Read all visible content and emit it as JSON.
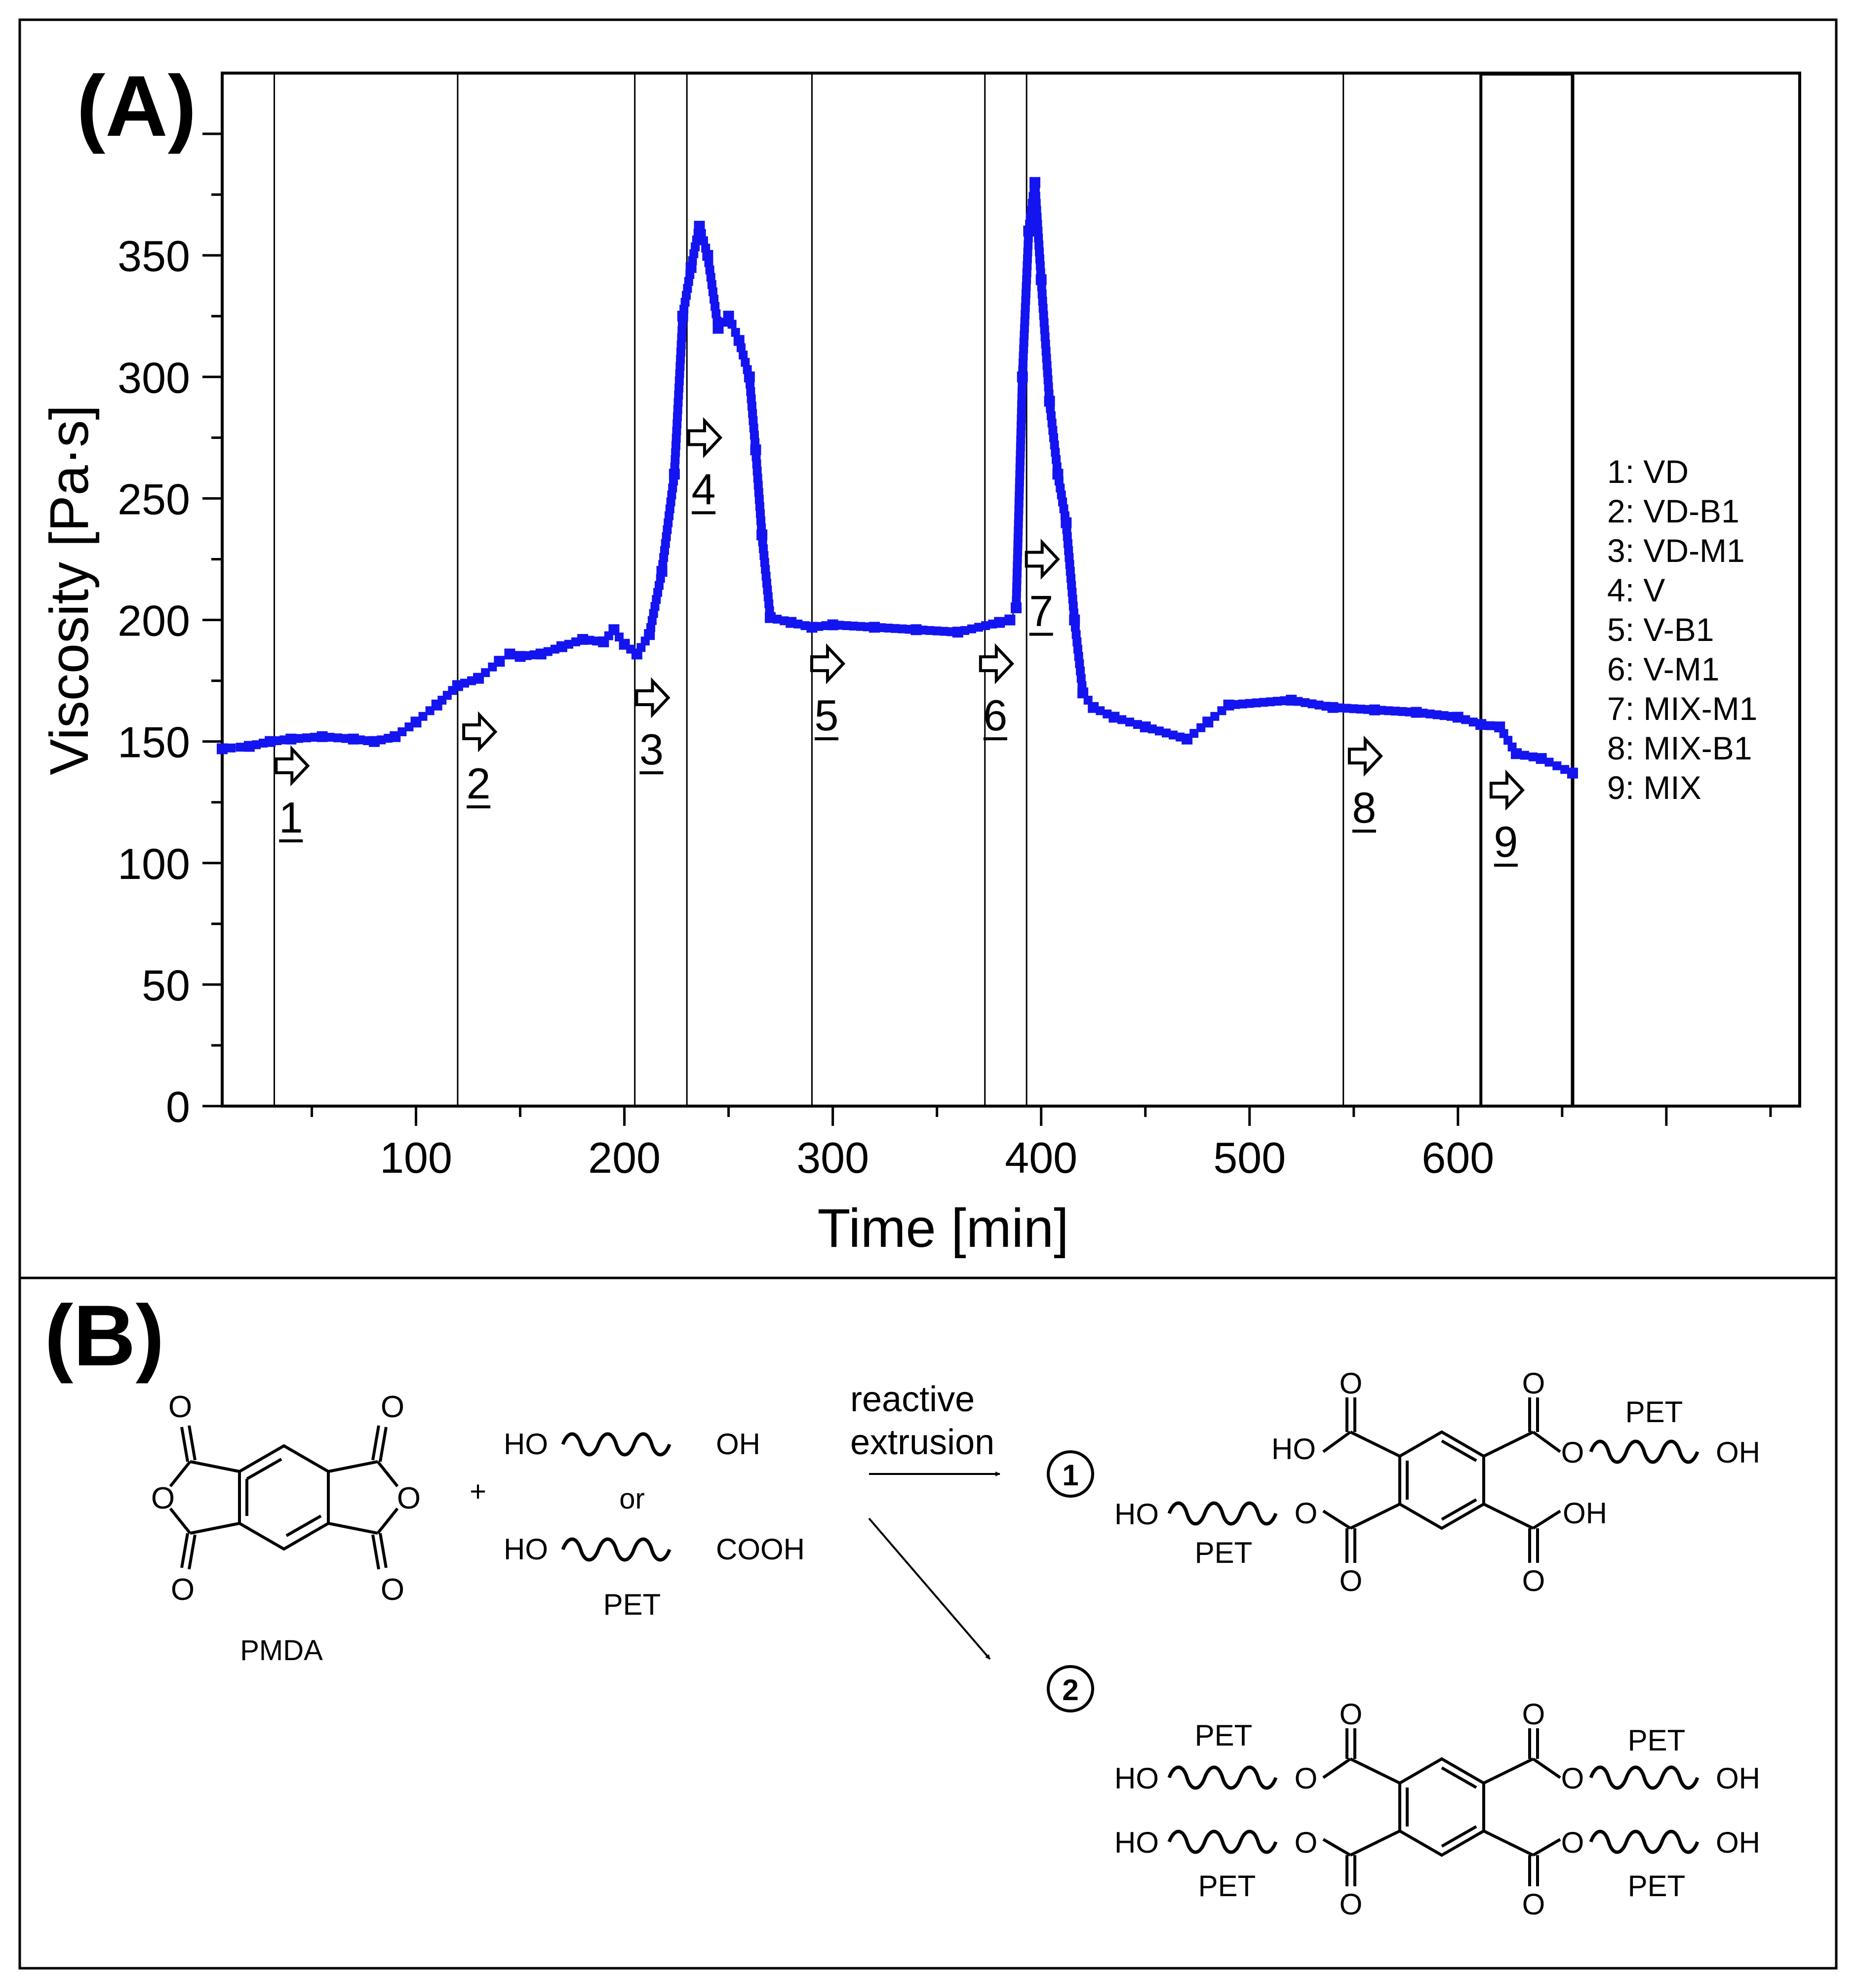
{
  "panel_a": {
    "label": "(A)",
    "legend": [
      "1: VD",
      "2: VD-B1",
      "3: VD-M1",
      "4: V",
      "5: V-B1",
      "6: V-M1",
      "7: MIX-M1",
      "8: MIX-B1",
      "9: MIX"
    ],
    "markers": [
      {
        "n": "1",
        "x": 40,
        "y": 140
      },
      {
        "n": "2",
        "x": 130,
        "y": 154
      },
      {
        "n": "3",
        "x": 213,
        "y": 168
      },
      {
        "n": "4",
        "x": 238,
        "y": 275
      },
      {
        "n": "5",
        "x": 297,
        "y": 182
      },
      {
        "n": "6",
        "x": 378,
        "y": 182
      },
      {
        "n": "7",
        "x": 400,
        "y": 225
      },
      {
        "n": "8",
        "x": 555,
        "y": 144
      },
      {
        "n": "9",
        "x": 623,
        "y": 130
      }
    ]
  },
  "chart_data": {
    "type": "scatter",
    "title": "",
    "xlabel": "Time [min]",
    "ylabel": "Viscosity [Pa·s]",
    "xlim": [
      7,
      764
    ],
    "ylim": [
      0,
      425
    ],
    "xticks": [
      100,
      200,
      300,
      400,
      500,
      600
    ],
    "yticks": [
      0,
      50,
      100,
      150,
      200,
      250,
      300,
      350
    ],
    "series_color": "#1414f0",
    "vertical_lines": [
      32,
      120,
      205,
      230,
      290,
      373,
      393,
      545,
      611,
      655
    ],
    "series": [
      {
        "name": "Viscosity",
        "x": [
          7,
          20,
          30,
          40,
          55,
          70,
          80,
          90,
          100,
          110,
          120,
          130,
          140,
          145,
          150,
          160,
          170,
          180,
          190,
          195,
          200,
          206,
          212,
          218,
          224,
          228,
          232,
          236,
          240,
          245,
          250,
          255,
          260,
          263,
          266,
          270,
          280,
          290,
          300,
          320,
          340,
          360,
          380,
          385,
          388,
          391,
          394,
          397,
          400,
          404,
          408,
          412,
          416,
          420,
          425,
          435,
          450,
          470,
          480,
          490,
          520,
          540,
          560,
          580,
          600,
          611,
          620,
          628,
          640,
          655
        ],
        "y": [
          147,
          148,
          150,
          151,
          152,
          151,
          150,
          152,
          158,
          165,
          173,
          176,
          183,
          186,
          185,
          186,
          189,
          192,
          191,
          196,
          190,
          186,
          194,
          220,
          260,
          325,
          345,
          362,
          350,
          320,
          325,
          315,
          300,
          270,
          235,
          201,
          199,
          197,
          198,
          197,
          196,
          195,
          199,
          200,
          205,
          300,
          360,
          380,
          340,
          290,
          260,
          240,
          200,
          170,
          164,
          160,
          156,
          151,
          158,
          165,
          167,
          164,
          163,
          162,
          160,
          157,
          156,
          145,
          143,
          137
        ]
      }
    ]
  },
  "panel_b": {
    "label": "(B)",
    "pmda": "PMDA",
    "plus": "+",
    "or": "or",
    "pet": "PET",
    "ho": "HO",
    "oh": "OH",
    "cooh": "COOH",
    "o": "O",
    "arrow_label_1": "reactive",
    "arrow_label_2": "extrusion",
    "product_1": "1",
    "product_2": "2"
  }
}
